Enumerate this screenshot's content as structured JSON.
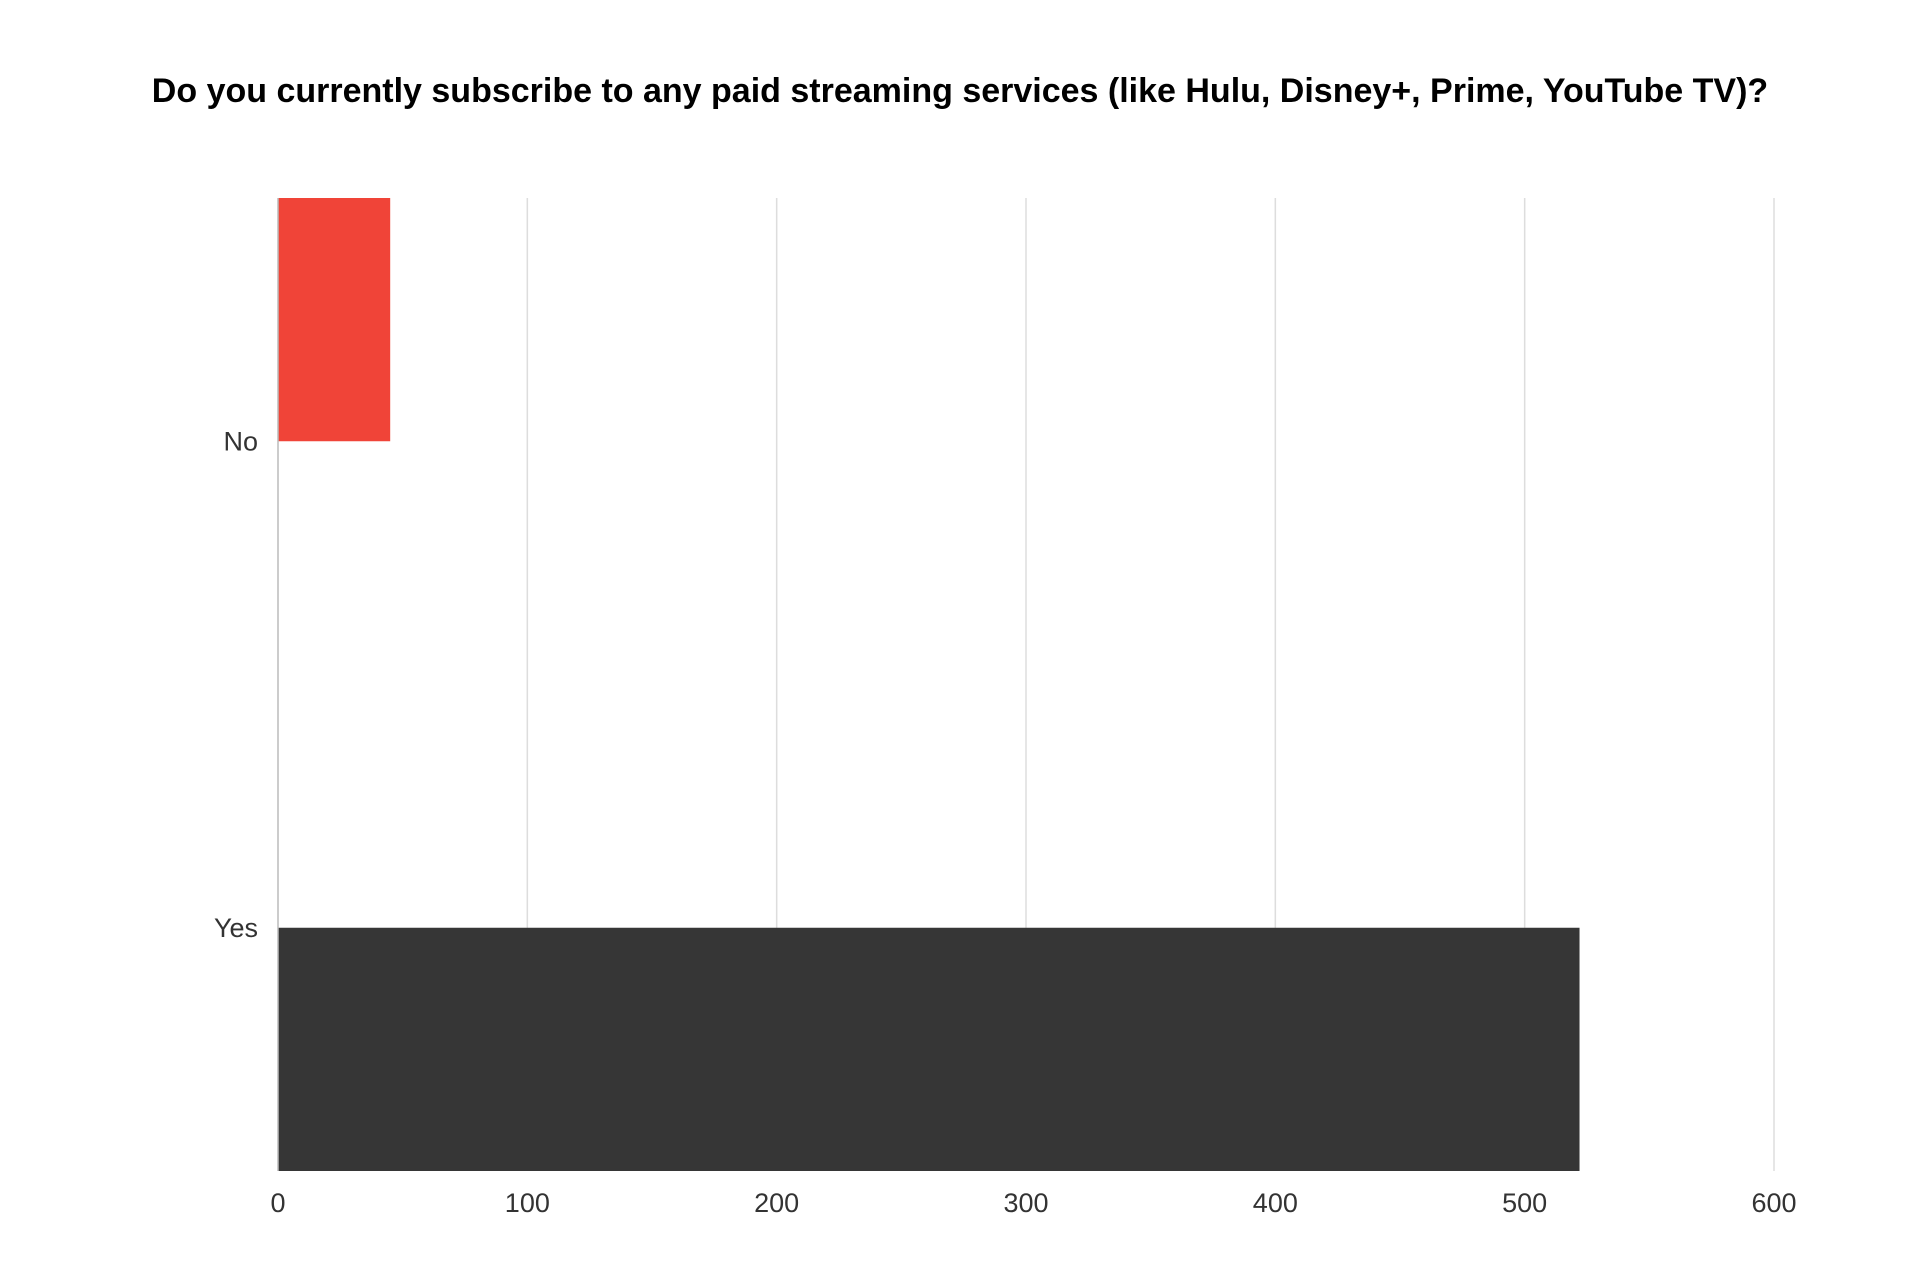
{
  "chart_data": {
    "type": "bar",
    "orientation": "horizontal",
    "title": "Do you currently subscribe to any paid streaming services (like Hulu, Disney+, Prime, YouTube TV)?",
    "xlabel": "",
    "ylabel": "",
    "categories": [
      "No",
      "Yes"
    ],
    "values": [
      45,
      522
    ],
    "bar_colors": [
      "#f04438",
      "#363636"
    ],
    "xlim": [
      0,
      600
    ],
    "xticks": [
      0,
      100,
      200,
      300,
      400,
      500,
      600
    ],
    "grid": true,
    "grid_color": "#dddddd",
    "legend": "none"
  }
}
